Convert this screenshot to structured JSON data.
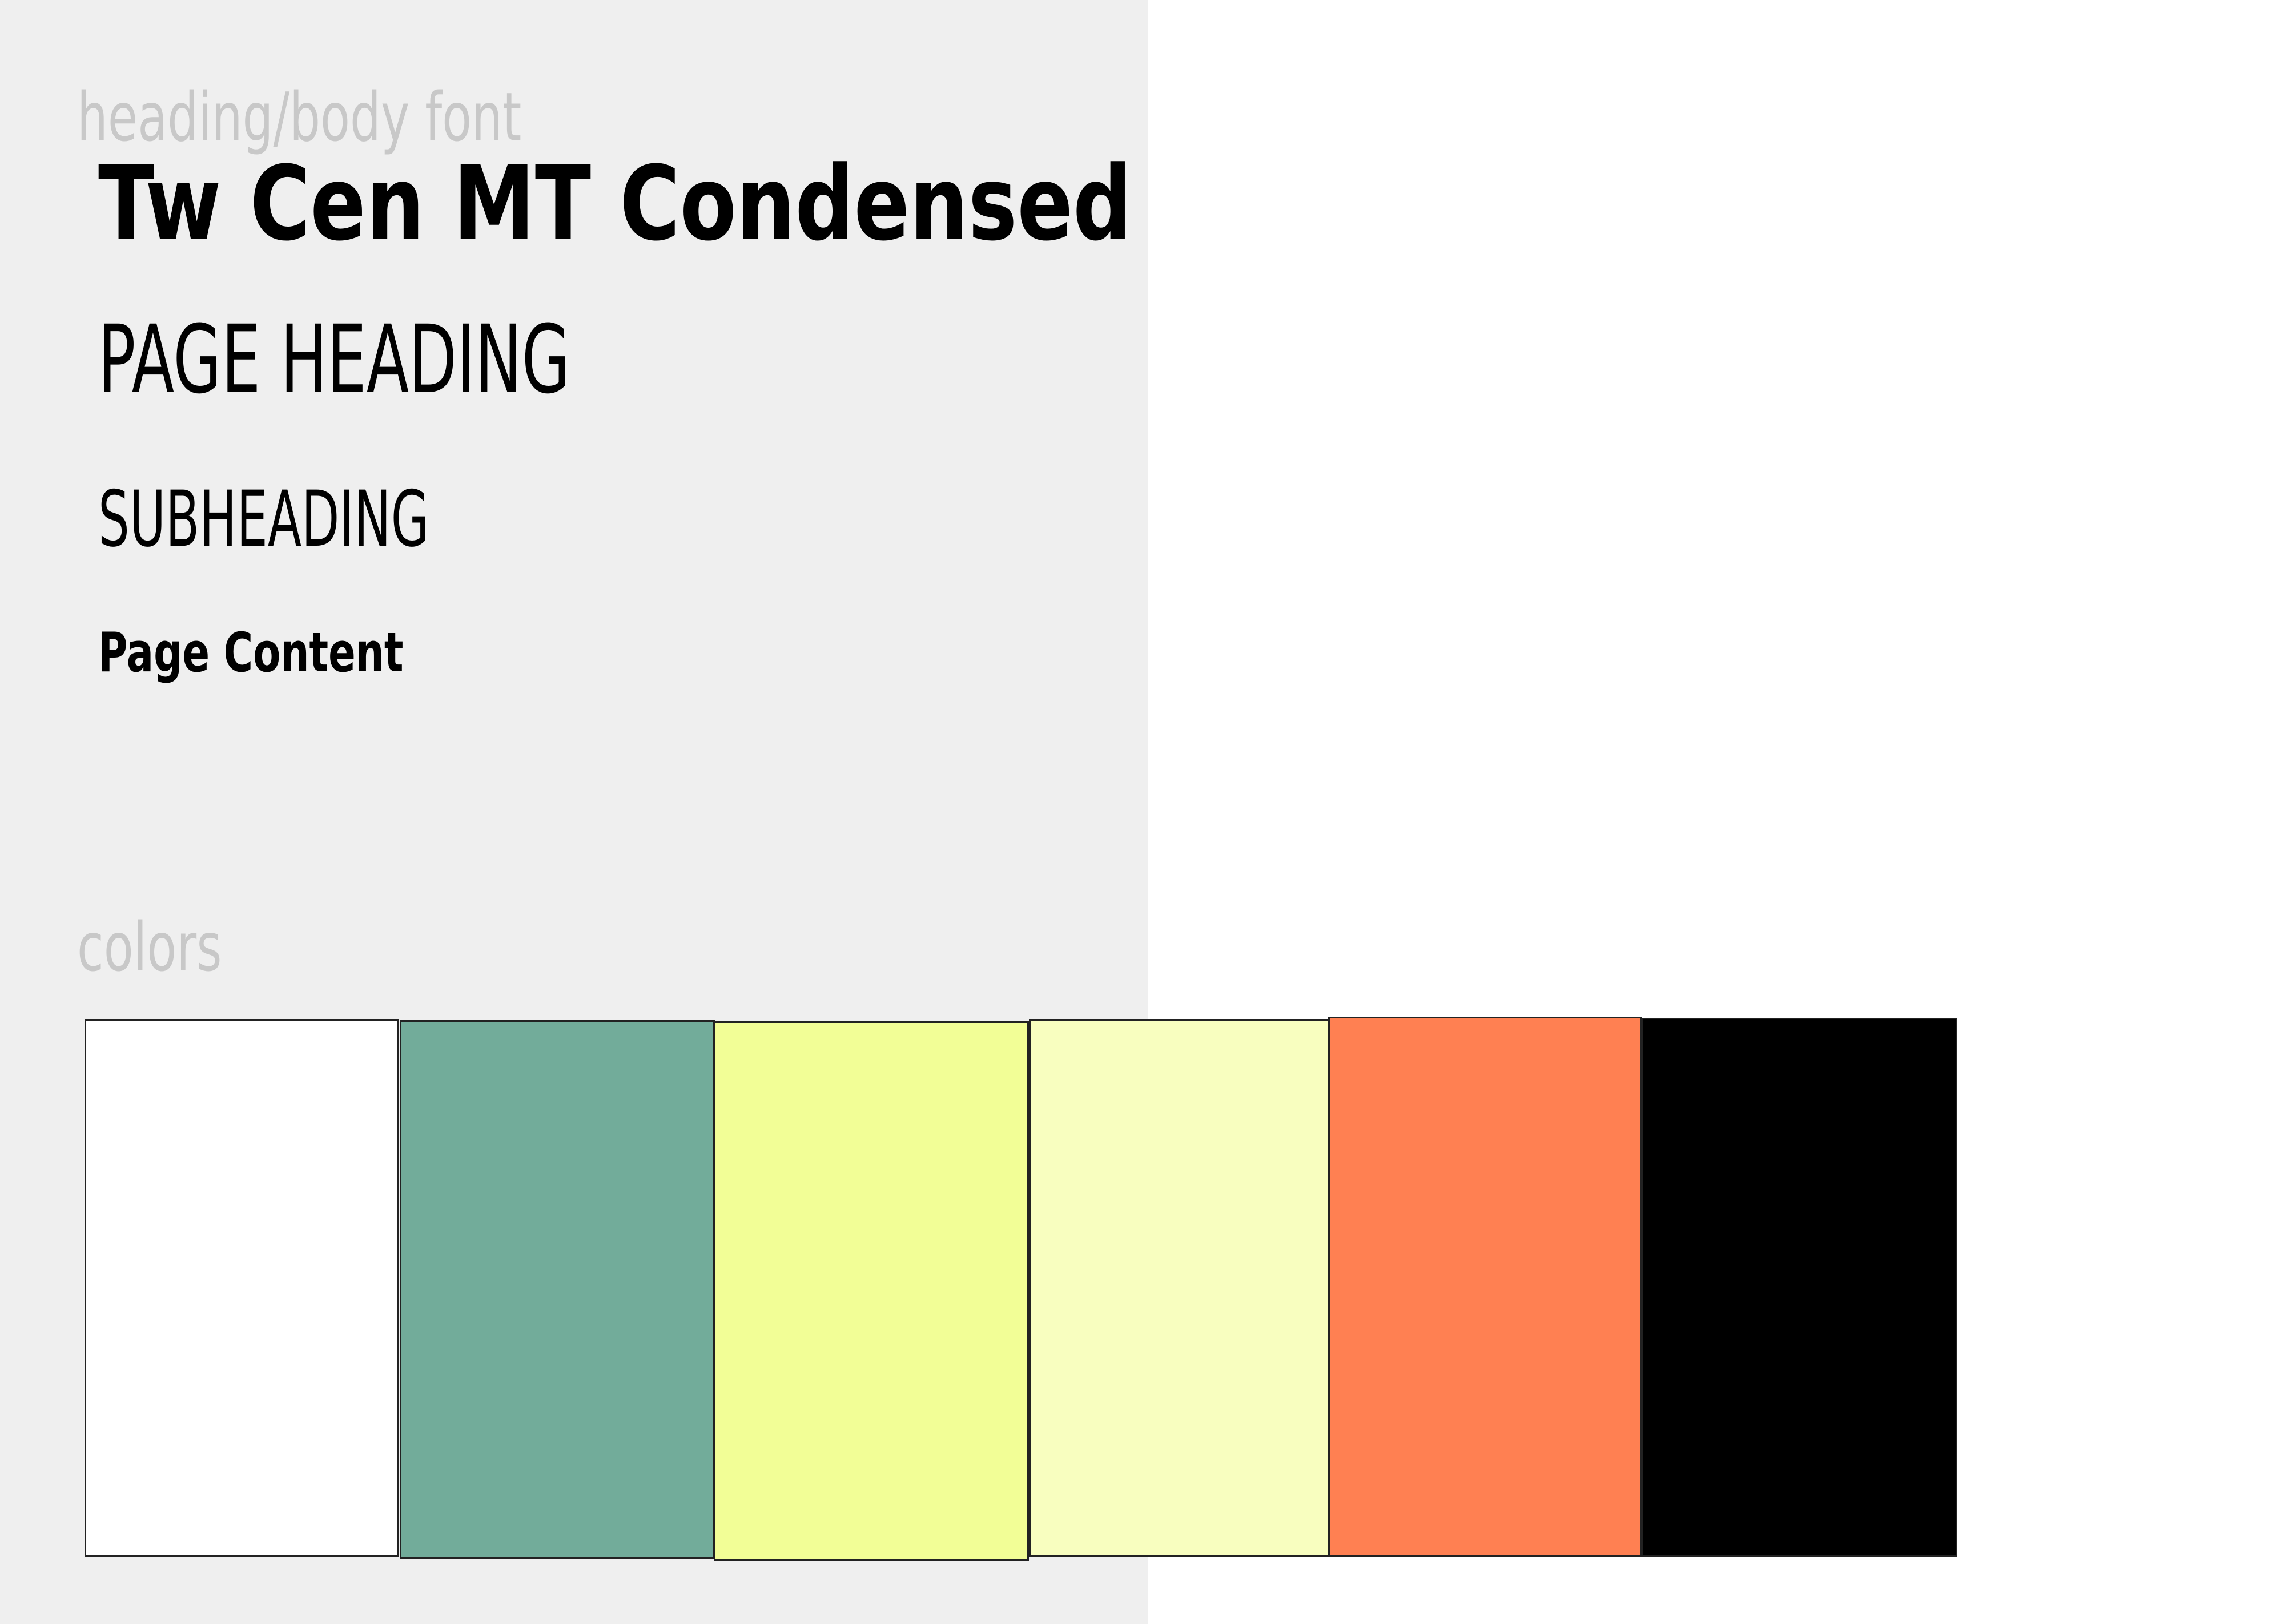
{
  "font_section": {
    "label": "heading/body font",
    "font_name": "Tw Cen MT Condensed",
    "samples": {
      "page_heading": "PAGE HEADING",
      "subheading": "SUBHEADING",
      "page_content": "Page Content"
    }
  },
  "colors_section": {
    "label": "colors",
    "swatches": [
      "#ffffff",
      "#72ac9a",
      "#f2fe96",
      "#f8febf",
      "#ff8052",
      "#000000"
    ]
  }
}
